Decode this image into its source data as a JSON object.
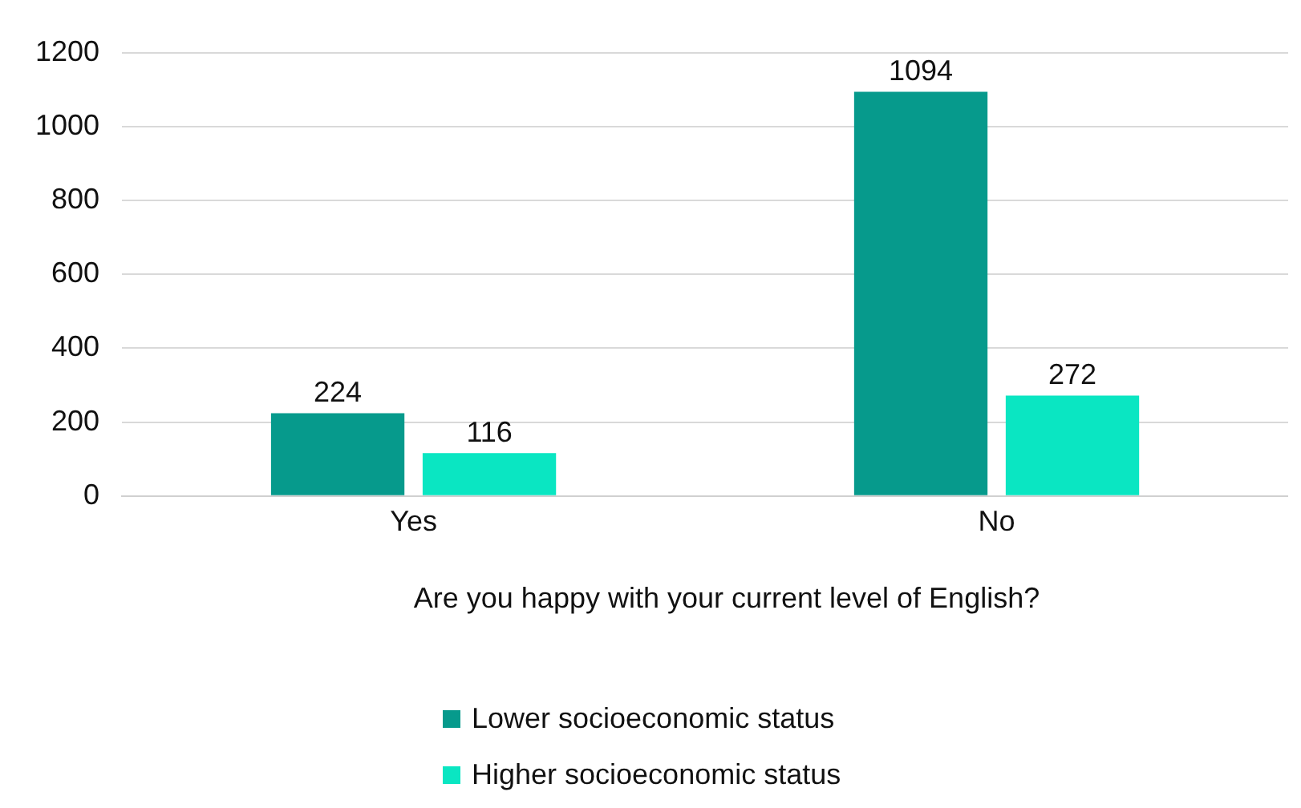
{
  "chart_data": {
    "type": "bar",
    "xlabel": "Are you happy with your current level of English?",
    "categories": [
      "Yes",
      "No"
    ],
    "series": [
      {
        "name": "Lower socioeconomic status",
        "color": "#069a8c",
        "values": [
          224,
          1094
        ]
      },
      {
        "name": "Higher socioeconomic status",
        "color": "#0ae6c2",
        "values": [
          116,
          272
        ]
      }
    ],
    "ylim": [
      0,
      1200
    ],
    "yticks": [
      0,
      200,
      400,
      600,
      800,
      1000,
      1200
    ],
    "grid": "y",
    "data_labels": true,
    "legend": "bottom"
  }
}
